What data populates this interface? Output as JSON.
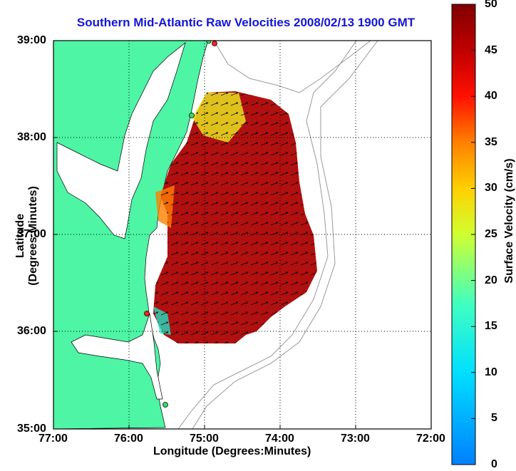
{
  "title": "Southern Mid-Atlantic Raw Velocities 2008/02/13 1900 GMT",
  "x_axis": {
    "label": "Longitude (Degrees:Minutes)",
    "ticks": [
      "77:00",
      "76:00",
      "75:00",
      "74:00",
      "73:00",
      "72:00"
    ]
  },
  "y_axis": {
    "label": "Latitude (Degrees:Minutes)",
    "ticks": [
      "39:00",
      "38:00",
      "37:00",
      "36:00",
      "35:00"
    ]
  },
  "colorbar": {
    "label": "Surface Velocity (cm/s)",
    "ticks": [
      "50",
      "45",
      "40",
      "35",
      "30",
      "25",
      "20",
      "15",
      "10",
      "5",
      "0"
    ],
    "range": [
      0,
      50
    ]
  },
  "colors": {
    "land": "#4df5a5",
    "water": "#ffffff",
    "title": "#1515d6"
  }
}
